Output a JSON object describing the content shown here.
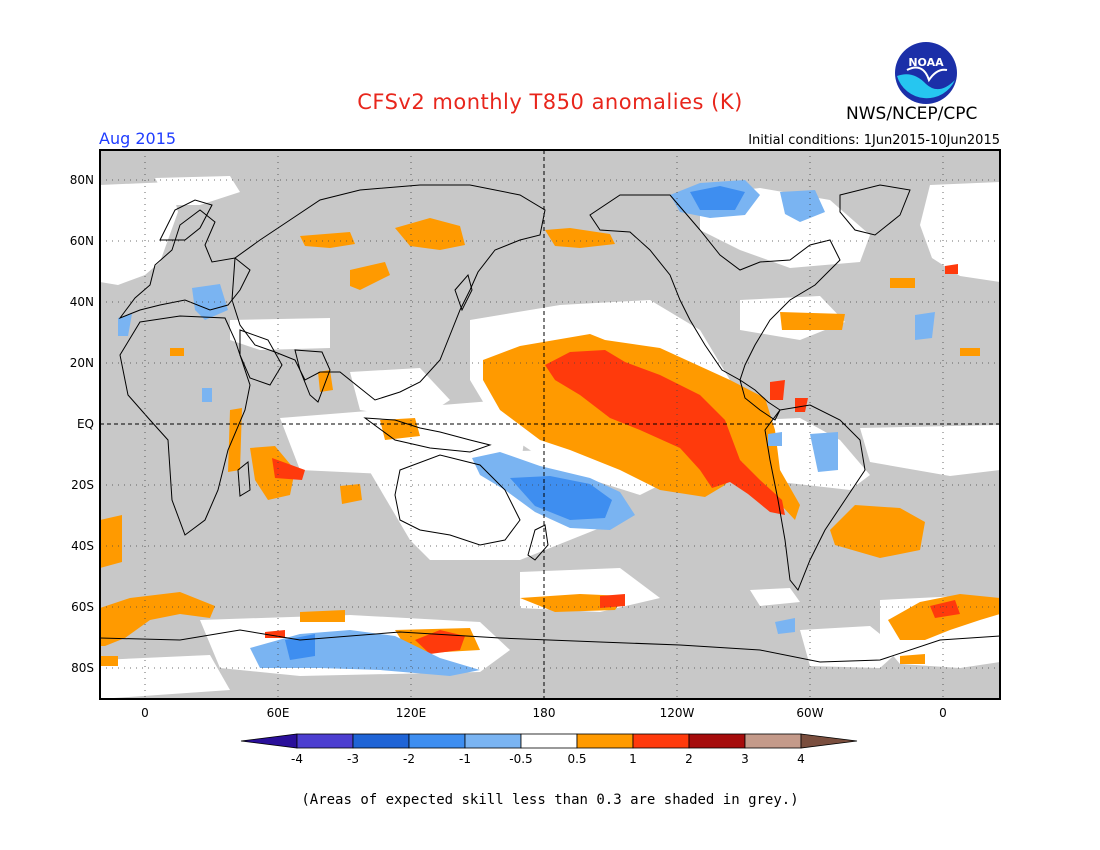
{
  "title": "CFSv2 monthly T850 anomalies (K)",
  "agency": "NWS/NCEP/CPC",
  "logo_text": "NOAA",
  "valid_month": "Aug 2015",
  "initial_conditions": "Initial conditions: 1Jun2015-10Jun2015",
  "footnote": "(Areas of expected skill less than 0.3 are shaded in grey.)",
  "map": {
    "lat_labels": [
      "80N",
      "60N",
      "40N",
      "20N",
      "EQ",
      "20S",
      "40S",
      "60S",
      "80S"
    ],
    "lon_labels": [
      "0",
      "60E",
      "120E",
      "180",
      "120W",
      "60W",
      "0"
    ],
    "colors": {
      "grey_low_skill": "#c8c8c8",
      "neutral": "#ffffff",
      "coastline": "#000000"
    }
  },
  "colorbar": {
    "labels": [
      "-4",
      "-3",
      "-2",
      "-1",
      "-0.5",
      "0.5",
      "1",
      "2",
      "3",
      "4"
    ],
    "colors": [
      "#2a0f9a",
      "#4c3ed0",
      "#1f64d6",
      "#3e8ef0",
      "#7ab4f2",
      "#ffffff",
      "#ff9a00",
      "#ff3a0c",
      "#a60c0c",
      "#c49a8a",
      "#7a4e3e"
    ]
  }
}
